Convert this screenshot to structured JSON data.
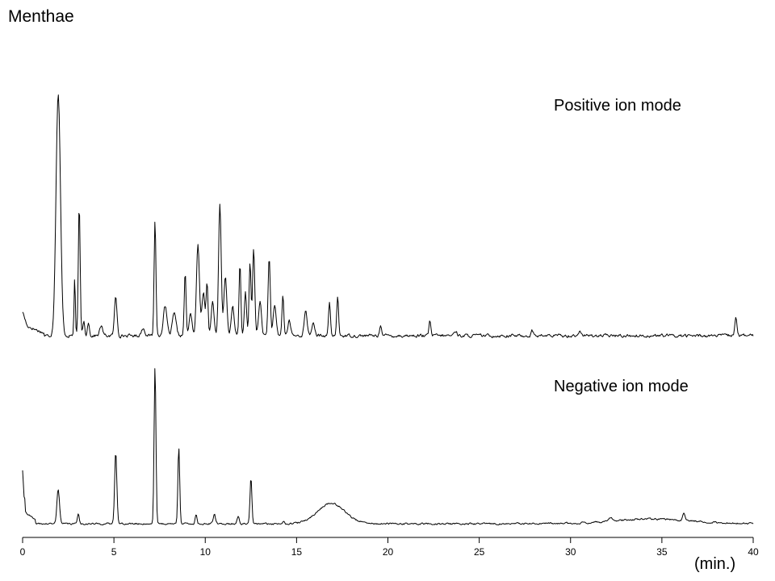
{
  "chart_data": {
    "type": "line",
    "title": "Menthae",
    "xlabel": "(min.)",
    "ylabel": "",
    "xlim": [
      0,
      40
    ],
    "xticks": [
      0,
      5,
      10,
      15,
      20,
      25,
      30,
      35,
      40
    ],
    "grid": false,
    "line_color": "#000000",
    "series": [
      {
        "name": "Positive ion mode",
        "baseline": 4,
        "noise": 1.2,
        "start": [
          [
            0.0,
            10
          ],
          [
            0.25,
            4
          ],
          [
            1.2,
            1
          ]
        ],
        "peaks": [
          [
            1.95,
            100,
            0.12
          ],
          [
            2.85,
            24,
            0.035
          ],
          [
            3.1,
            54,
            0.05
          ],
          [
            3.35,
            6,
            0.05
          ],
          [
            3.6,
            6,
            0.05
          ],
          [
            4.3,
            4,
            0.08
          ],
          [
            5.1,
            16,
            0.07
          ],
          [
            6.6,
            3,
            0.1
          ],
          [
            7.25,
            48,
            0.05
          ],
          [
            7.8,
            12,
            0.1
          ],
          [
            8.3,
            9,
            0.1
          ],
          [
            8.9,
            26,
            0.05
          ],
          [
            9.2,
            9,
            0.08
          ],
          [
            9.6,
            38,
            0.08
          ],
          [
            9.9,
            18,
            0.08
          ],
          [
            10.1,
            22,
            0.05
          ],
          [
            10.4,
            14,
            0.08
          ],
          [
            10.8,
            54,
            0.07
          ],
          [
            11.1,
            24,
            0.08
          ],
          [
            11.5,
            12,
            0.08
          ],
          [
            11.9,
            30,
            0.05
          ],
          [
            12.2,
            18,
            0.06
          ],
          [
            12.45,
            30,
            0.05
          ],
          [
            12.65,
            36,
            0.06
          ],
          [
            13.0,
            14,
            0.08
          ],
          [
            13.5,
            32,
            0.06
          ],
          [
            13.8,
            12,
            0.08
          ],
          [
            14.25,
            17,
            0.05
          ],
          [
            14.6,
            6,
            0.08
          ],
          [
            15.5,
            10,
            0.08
          ],
          [
            15.9,
            5,
            0.08
          ],
          [
            16.8,
            14,
            0.05
          ],
          [
            17.25,
            16,
            0.05
          ],
          [
            19.6,
            5,
            0.05
          ],
          [
            22.3,
            6,
            0.05
          ],
          [
            23.7,
            2,
            0.08
          ],
          [
            27.9,
            2,
            0.06
          ],
          [
            30.5,
            1.5,
            0.1
          ],
          [
            39.05,
            8,
            0.06
          ]
        ],
        "humps": []
      },
      {
        "name": "Negative ion mode",
        "baseline": 4,
        "noise": 1.0,
        "start": [
          [
            0.0,
            34
          ],
          [
            0.12,
            8
          ],
          [
            0.7,
            2
          ]
        ],
        "peaks": [
          [
            1.95,
            22,
            0.07
          ],
          [
            3.05,
            7,
            0.05
          ],
          [
            5.1,
            46,
            0.06
          ],
          [
            7.25,
            100,
            0.05
          ],
          [
            8.55,
            49,
            0.05
          ],
          [
            9.5,
            6,
            0.05
          ],
          [
            10.5,
            6,
            0.06
          ],
          [
            11.8,
            5,
            0.06
          ],
          [
            12.5,
            29,
            0.05
          ],
          [
            14.3,
            2,
            0.06
          ],
          [
            32.2,
            2,
            0.1
          ],
          [
            36.2,
            5,
            0.06
          ]
        ],
        "humps": [
          [
            16.9,
            13,
            0.75
          ],
          [
            34.5,
            3,
            2.2
          ]
        ]
      }
    ]
  }
}
